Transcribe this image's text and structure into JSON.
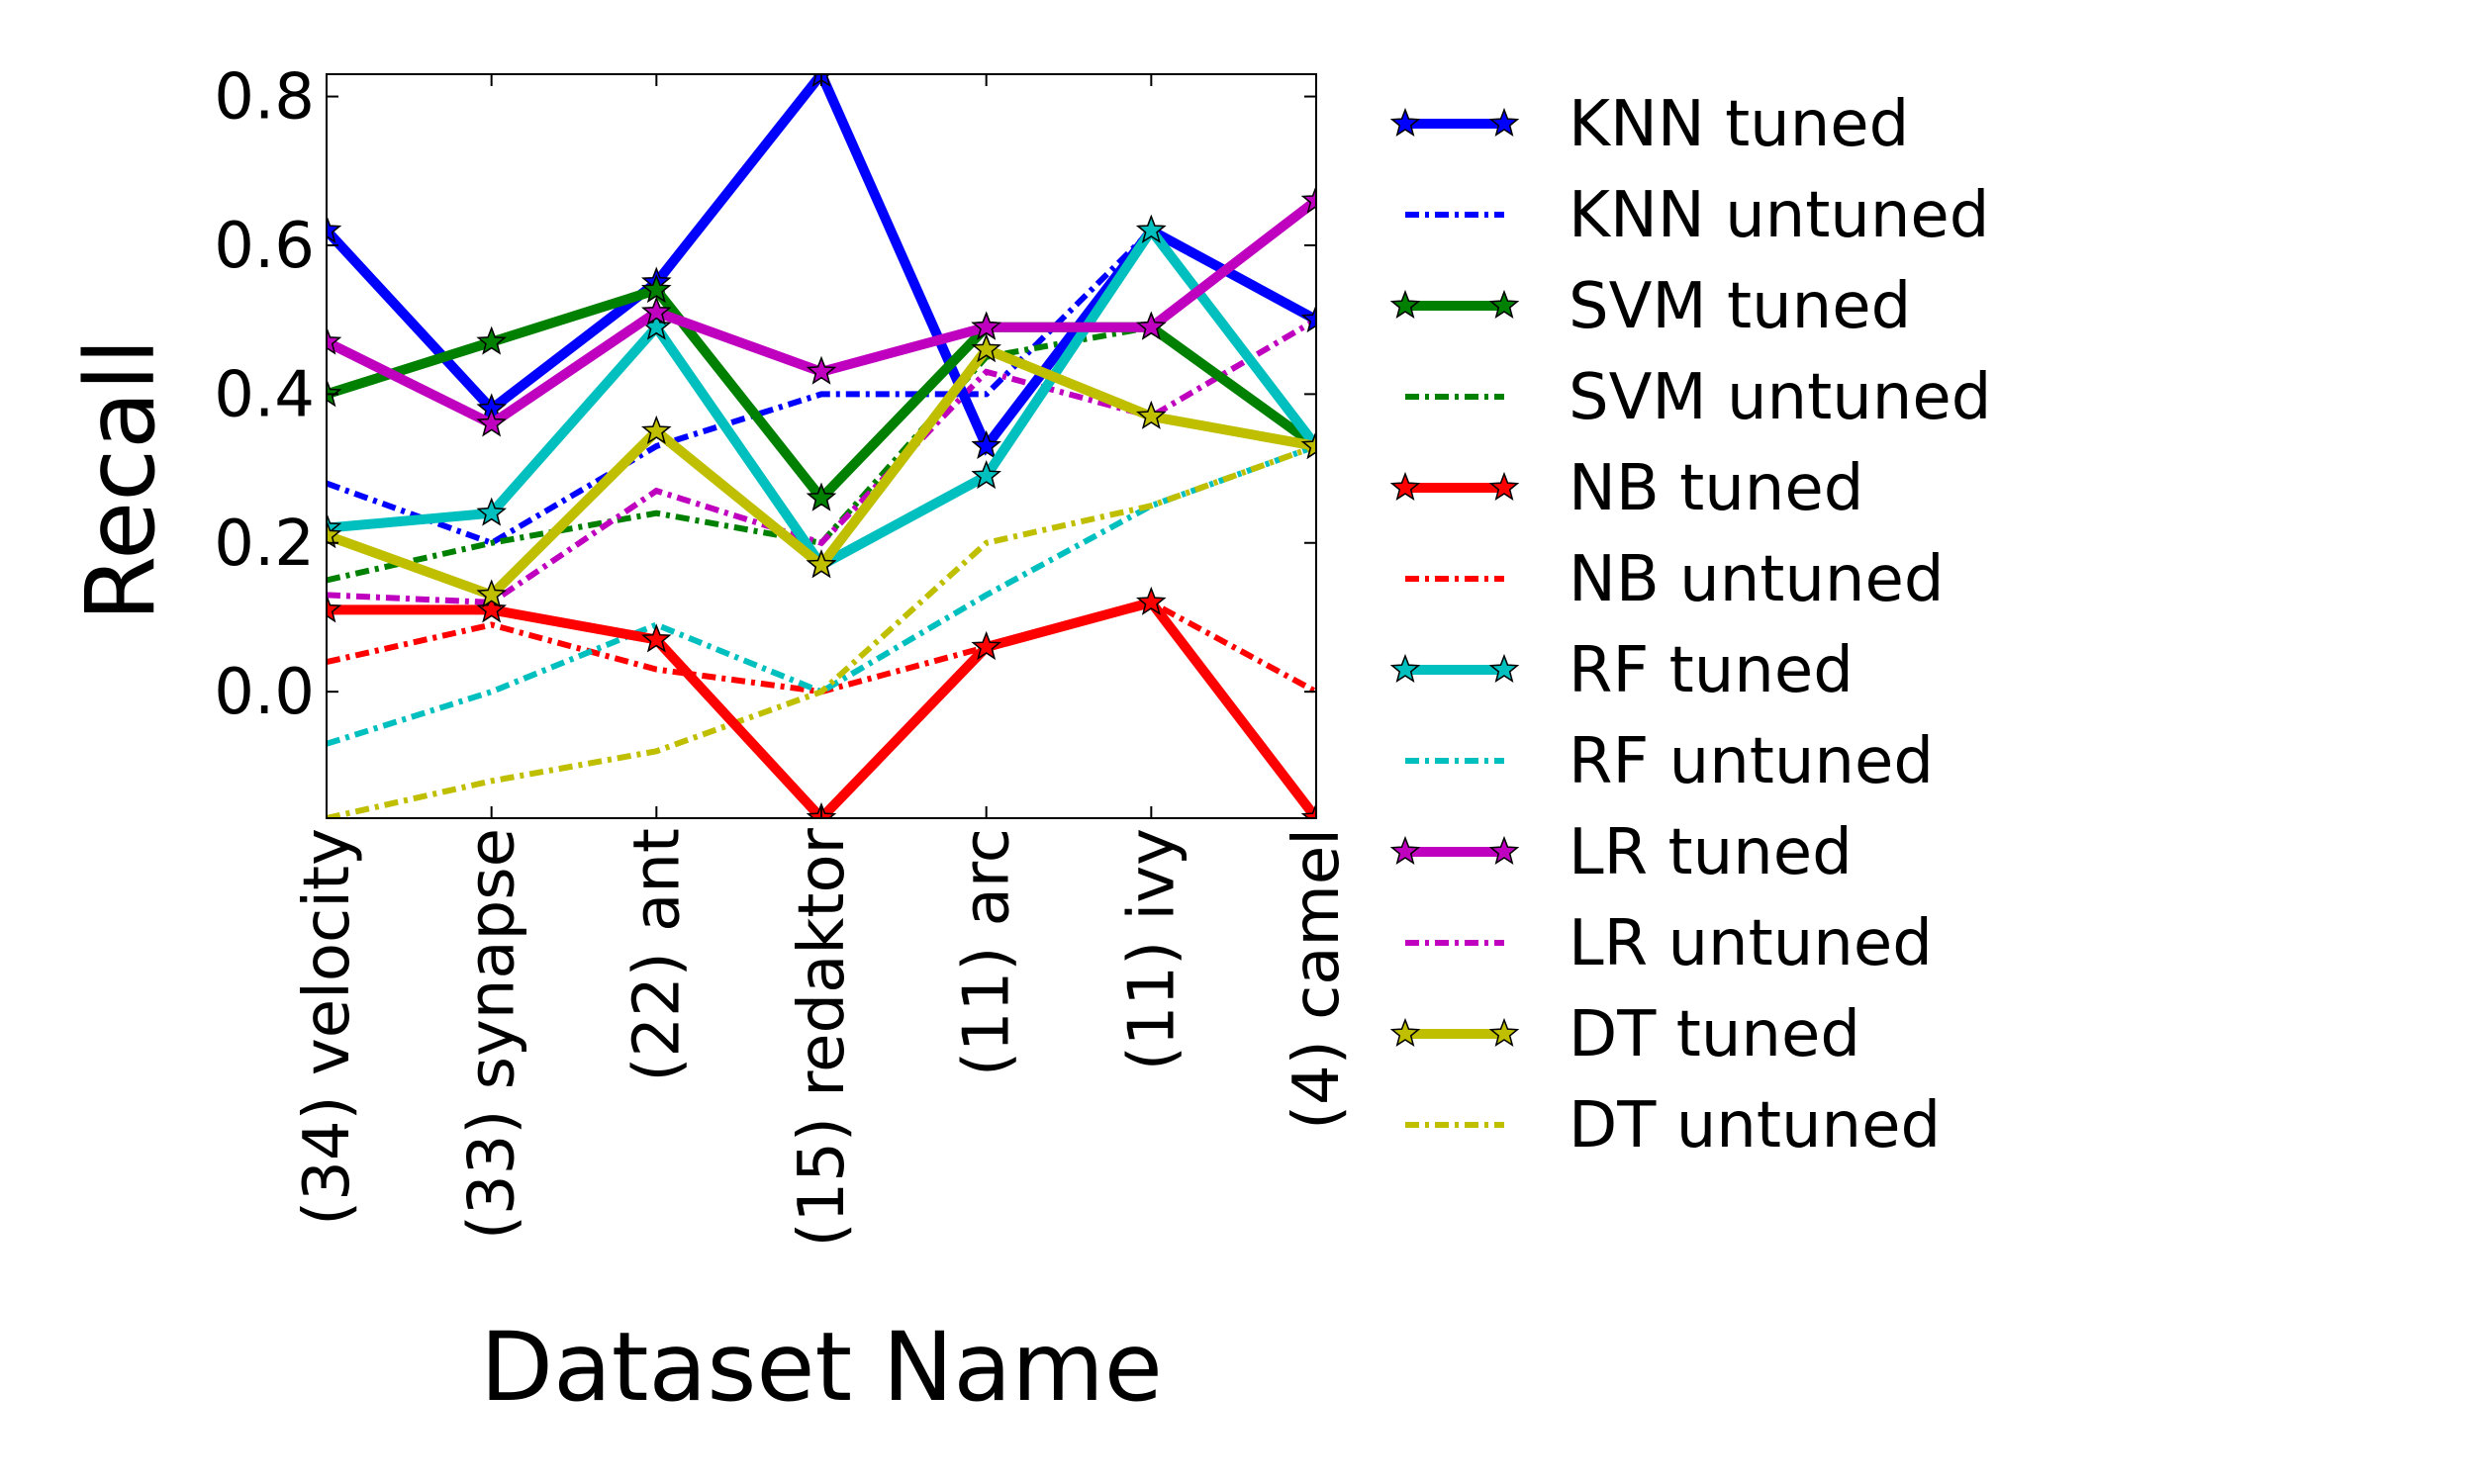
{
  "chart_data": {
    "type": "line",
    "xlabel": "Dataset Name",
    "ylabel": "Recall",
    "categories": [
      "(34) velocity",
      "(33) synapse",
      "(22) ant",
      "(15) redaktor",
      "(11) arc",
      "(11) ivy",
      "(4) camel"
    ],
    "ylim": [
      -0.17,
      0.83
    ],
    "yticks": [
      "0.0",
      "0.2",
      "0.4",
      "0.6",
      "0.8"
    ],
    "grid": false,
    "legend_placement": "outside-right",
    "series": [
      {
        "name": "KNN tuned",
        "color": "#0000ff",
        "style": "solid",
        "marker": "star",
        "values": [
          0.62,
          0.38,
          0.55,
          0.83,
          0.33,
          0.62,
          0.5
        ]
      },
      {
        "name": "KNN untuned",
        "color": "#0000ff",
        "style": "dashdot",
        "marker": "none",
        "values": [
          0.28,
          0.2,
          0.33,
          0.4,
          0.4,
          0.62,
          0.5
        ]
      },
      {
        "name": "SVM tuned",
        "color": "#008000",
        "style": "solid",
        "marker": "star",
        "values": [
          0.4,
          0.47,
          0.54,
          0.26,
          0.49,
          0.49,
          0.33
        ]
      },
      {
        "name": "SVM untuned",
        "color": "#008000",
        "style": "dashdot",
        "marker": "none",
        "values": [
          0.15,
          0.2,
          0.24,
          0.2,
          0.45,
          0.49,
          0.33
        ]
      },
      {
        "name": "NB tuned",
        "color": "#ff0000",
        "style": "solid",
        "marker": "star",
        "values": [
          0.11,
          0.11,
          0.07,
          -0.17,
          0.06,
          0.12,
          -0.17
        ]
      },
      {
        "name": "NB untuned",
        "color": "#ff0000",
        "style": "dashdot",
        "marker": "none",
        "values": [
          0.04,
          0.09,
          0.03,
          0.0,
          0.06,
          0.12,
          0.0
        ]
      },
      {
        "name": "RF tuned",
        "color": "#00bfbf",
        "style": "solid",
        "marker": "star",
        "values": [
          0.22,
          0.24,
          0.49,
          0.17,
          0.29,
          0.62,
          0.33
        ]
      },
      {
        "name": "RF untuned",
        "color": "#00bfbf",
        "style": "dashdot",
        "marker": "none",
        "values": [
          -0.07,
          0.0,
          0.09,
          0.0,
          0.13,
          0.25,
          0.33
        ]
      },
      {
        "name": "LR tuned",
        "color": "#bf00bf",
        "style": "solid",
        "marker": "star",
        "values": [
          0.47,
          0.36,
          0.51,
          0.43,
          0.49,
          0.49,
          0.66
        ]
      },
      {
        "name": "LR untuned",
        "color": "#bf00bf",
        "style": "dashdot",
        "marker": "none",
        "values": [
          0.13,
          0.12,
          0.27,
          0.2,
          0.43,
          0.37,
          0.5
        ]
      },
      {
        "name": "DT tuned",
        "color": "#bfbf00",
        "style": "solid",
        "marker": "star",
        "values": [
          0.21,
          0.13,
          0.35,
          0.17,
          0.46,
          0.37,
          0.33
        ]
      },
      {
        "name": "DT untuned",
        "color": "#bfbf00",
        "style": "dashdot",
        "marker": "none",
        "values": [
          -0.17,
          -0.12,
          -0.08,
          0.0,
          0.2,
          0.25,
          0.33
        ]
      }
    ]
  }
}
